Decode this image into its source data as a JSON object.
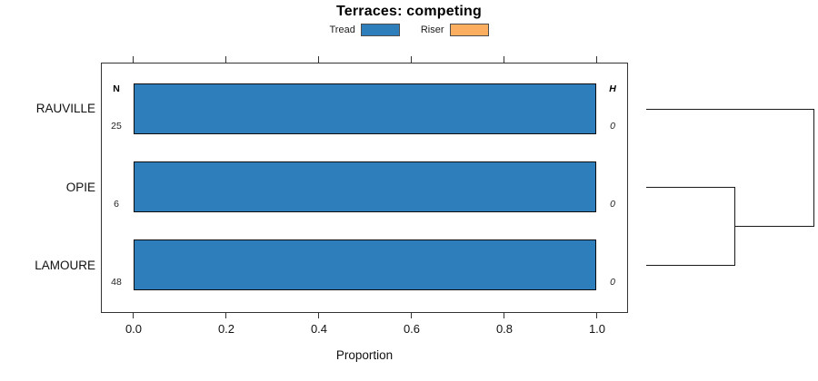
{
  "title": "Terraces: competing",
  "legend_items": [
    {
      "label": "Tread",
      "color": "#2E7EBB"
    },
    {
      "label": "Riser",
      "color": "#FBAD60"
    }
  ],
  "columns": {
    "n_header": "N",
    "h_header": "H"
  },
  "rows": [
    {
      "label": "RAUVILLE",
      "n": "25",
      "h": "0",
      "tread": 1.0,
      "riser": 0.0
    },
    {
      "label": "OPIE",
      "n": "6",
      "h": "0",
      "tread": 1.0,
      "riser": 0.0
    },
    {
      "label": "LAMOURE",
      "n": "48",
      "h": "0",
      "tread": 1.0,
      "riser": 0.0
    }
  ],
  "x_axis": {
    "label": "Proportion",
    "ticks": [
      "0.0",
      "0.2",
      "0.4",
      "0.6",
      "0.8",
      "1.0"
    ]
  },
  "colors": {
    "tread": "#2E7EBB",
    "riser": "#FBAD60",
    "bar_border": "#0d0d0d",
    "box_border": "#333333"
  },
  "chart_data": {
    "type": "bar",
    "orientation": "horizontal",
    "title": "Terraces: competing",
    "categories": [
      "RAUVILLE",
      "OPIE",
      "LAMOURE"
    ],
    "series": [
      {
        "name": "Tread",
        "color": "#2E7EBB",
        "values": [
          1.0,
          1.0,
          1.0
        ]
      },
      {
        "name": "Riser",
        "color": "#FBAD60",
        "values": [
          0.0,
          0.0,
          0.0
        ]
      }
    ],
    "n_values": [
      25,
      6,
      48
    ],
    "h_values": [
      0,
      0,
      0
    ],
    "xlabel": "Proportion",
    "ylabel": "",
    "xlim": [
      0,
      1
    ],
    "x_ticks": [
      0.0,
      0.2,
      0.4,
      0.6,
      0.8,
      1.0
    ],
    "grid": false,
    "legend_position": "top-center",
    "annotations": {
      "left_column_header": "N",
      "right_column_header": "H"
    },
    "dendrogram": {
      "side": "right",
      "leaves": [
        "RAUVILLE",
        "OPIE",
        "LAMOURE"
      ],
      "merges": [
        {
          "members": [
            "OPIE",
            "LAMOURE"
          ],
          "height": 0
        },
        {
          "members": [
            "RAUVILLE",
            "(OPIE,LAMOURE)"
          ],
          "height": 0
        }
      ]
    }
  }
}
